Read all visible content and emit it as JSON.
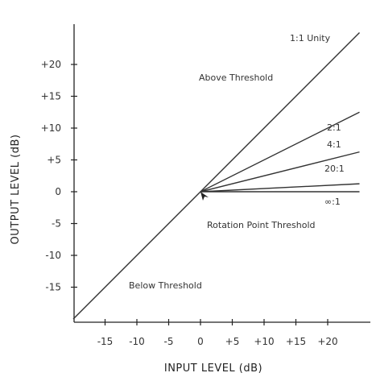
{
  "chart_data": {
    "type": "line",
    "xlabel": "INPUT LEVEL (dB)",
    "ylabel": "OUTPUT LEVEL (dB)",
    "xlim": [
      -20,
      25
    ],
    "ylim": [
      -20,
      25
    ],
    "x_ticks": [
      "-15",
      "-10",
      "-5",
      "0",
      "+5",
      "+10",
      "+15",
      "+20"
    ],
    "x_tick_values": [
      -15,
      -10,
      -5,
      0,
      5,
      10,
      15,
      20
    ],
    "y_ticks": [
      "+20",
      "+15",
      "+10",
      "+5",
      "0",
      "-5",
      "-10",
      "-15"
    ],
    "y_tick_values": [
      20,
      15,
      10,
      5,
      0,
      -5,
      -10,
      -15
    ],
    "series": [
      {
        "name": "1:1 Unity",
        "x": [
          -20,
          25
        ],
        "y": [
          -20,
          25
        ]
      },
      {
        "name": "2:1",
        "x": [
          0,
          25
        ],
        "y": [
          0,
          12.5
        ]
      },
      {
        "name": "4:1",
        "x": [
          0,
          25
        ],
        "y": [
          0,
          6.25
        ]
      },
      {
        "name": "20:1",
        "x": [
          0,
          25
        ],
        "y": [
          0,
          1.25
        ]
      },
      {
        "name": "∞:1",
        "x": [
          0,
          25
        ],
        "y": [
          0,
          0
        ]
      }
    ],
    "annotations": {
      "above": "Above Threshold",
      "below": "Below Threshold",
      "rotation": "Rotation Point Threshold"
    }
  }
}
